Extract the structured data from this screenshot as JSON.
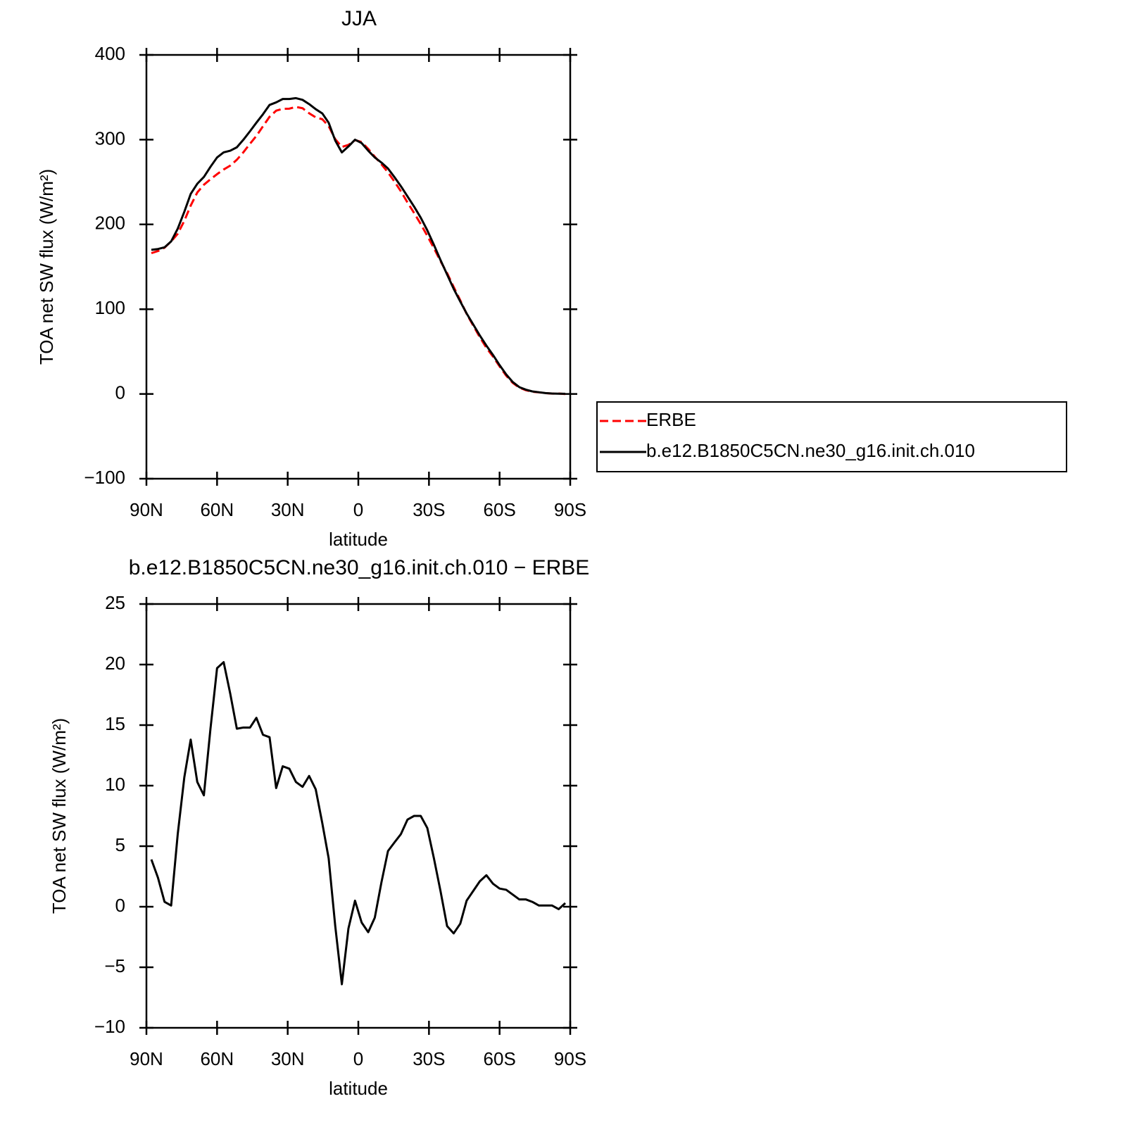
{
  "chart_data": [
    {
      "type": "line",
      "title": "JJA",
      "xlabel": "latitude",
      "ylabel": "TOA net SW flux (W/m²)",
      "x": [
        87.9,
        85.1,
        82.3,
        79.5,
        76.7,
        73.9,
        71.2,
        68.4,
        65.6,
        62.8,
        60.0,
        57.2,
        54.4,
        51.6,
        48.8,
        46.0,
        43.3,
        40.5,
        37.7,
        34.9,
        32.1,
        29.3,
        26.5,
        23.7,
        20.9,
        18.1,
        15.3,
        12.6,
        9.8,
        7.0,
        4.2,
        1.4,
        -1.4,
        -4.2,
        -7.0,
        -9.8,
        -12.6,
        -15.3,
        -18.1,
        -20.9,
        -23.7,
        -26.5,
        -29.3,
        -32.1,
        -34.9,
        -37.7,
        -40.5,
        -43.3,
        -46.0,
        -48.8,
        -51.6,
        -54.4,
        -57.2,
        -60.0,
        -62.8,
        -65.6,
        -68.4,
        -71.2,
        -73.9,
        -76.7,
        -79.5,
        -82.3,
        -85.1,
        -87.9
      ],
      "series": [
        {
          "name": "ERBE",
          "color": "#ff0000",
          "dash": true,
          "values": [
            166.1,
            168.6,
            172.6,
            179.9,
            189,
            204.3,
            222.2,
            237.7,
            246.8,
            253.3,
            259.3,
            264.8,
            269.4,
            276.3,
            285.2,
            295.2,
            304.4,
            315.8,
            327,
            334.2,
            336.4,
            336.6,
            338.7,
            337.1,
            331.2,
            326.3,
            324.1,
            316,
            300.6,
            291.4,
            293.8,
            299.5,
            297.3,
            289.1,
            279.9,
            271,
            261.4,
            250.7,
            239,
            225.8,
            213.5,
            200.5,
            186.5,
            172,
            156.7,
            142.6,
            126.2,
            110.4,
            94.5,
            80.7,
            66.9,
            54.4,
            44.1,
            32.5,
            21.6,
            13,
            7.4,
            4.4,
            2.6,
            1.9,
            0.9,
            0.4,
            0.5,
            -0.1
          ]
        },
        {
          "name": "b.e12.B1850C5CN.ne30_g16.init.ch.010",
          "color": "#000000",
          "dash": false,
          "values": [
            170,
            171,
            173,
            180,
            195,
            215,
            236,
            248,
            256,
            268,
            279,
            285,
            287,
            291,
            300,
            310,
            320,
            330,
            341,
            344,
            348,
            348,
            349,
            347,
            342,
            336,
            331,
            320,
            299,
            285,
            292,
            300,
            296,
            287,
            279,
            273,
            266,
            256,
            245,
            233,
            221,
            208,
            193,
            176,
            158,
            141,
            124,
            109,
            95,
            82,
            69,
            57,
            46,
            34,
            23,
            14,
            8,
            5,
            3,
            2,
            1,
            0.5,
            0.3,
            0.2
          ]
        }
      ],
      "xlim": [
        90,
        -90
      ],
      "xticks": [
        {
          "value": 90,
          "label": "90N"
        },
        {
          "value": 60,
          "label": "60N"
        },
        {
          "value": 30,
          "label": "30N"
        },
        0,
        {
          "value": -30,
          "label": "30S"
        },
        {
          "value": -60,
          "label": "60S"
        },
        {
          "value": -90,
          "label": "90S"
        }
      ],
      "ylim": [
        -100,
        400
      ],
      "yticks": [
        {
          "value": -100,
          "label": "−100"
        },
        0,
        100,
        200,
        300,
        400
      ],
      "legend": "outside-right"
    },
    {
      "type": "line",
      "title": "b.e12.B1850C5CN.ne30_g16.init.ch.010 − ERBE",
      "xlabel": "latitude",
      "ylabel": "TOA net SW flux (W/m²)",
      "x": [
        87.9,
        85.1,
        82.3,
        79.5,
        76.7,
        73.9,
        71.2,
        68.4,
        65.6,
        62.8,
        60.0,
        57.2,
        54.4,
        51.6,
        48.8,
        46.0,
        43.3,
        40.5,
        37.7,
        34.9,
        32.1,
        29.3,
        26.5,
        23.7,
        20.9,
        18.1,
        15.3,
        12.6,
        9.8,
        7.0,
        4.2,
        1.4,
        -1.4,
        -4.2,
        -7.0,
        -9.8,
        -12.6,
        -15.3,
        -18.1,
        -20.9,
        -23.7,
        -26.5,
        -29.3,
        -32.1,
        -34.9,
        -37.7,
        -40.5,
        -43.3,
        -46.0,
        -48.8,
        -51.6,
        -54.4,
        -57.2,
        -60.0,
        -62.8,
        -65.6,
        -68.4,
        -71.2,
        -73.9,
        -76.7,
        -79.5,
        -82.3,
        -85.1,
        -87.9
      ],
      "values": [
        3.9,
        2.4,
        0.4,
        0.1,
        6,
        10.7,
        13.8,
        10.3,
        9.2,
        14.7,
        19.7,
        20.2,
        17.6,
        14.7,
        14.8,
        14.8,
        15.6,
        14.2,
        14,
        9.8,
        11.6,
        11.4,
        10.3,
        9.9,
        10.8,
        9.7,
        6.9,
        4,
        -1.6,
        -6.4,
        -1.8,
        0.5,
        -1.3,
        -2.1,
        -0.9,
        2,
        4.6,
        5.3,
        6,
        7.2,
        7.5,
        7.5,
        6.5,
        4,
        1.3,
        -1.6,
        -2.2,
        -1.4,
        0.5,
        1.3,
        2.1,
        2.6,
        1.9,
        1.5,
        1.4,
        1,
        0.6,
        0.6,
        0.4,
        0.1,
        0.1,
        0.1,
        -0.2,
        0.3
      ],
      "color": "#000000",
      "xlim": [
        90,
        -90
      ],
      "xticks": [
        {
          "value": 90,
          "label": "90N"
        },
        {
          "value": 60,
          "label": "60N"
        },
        {
          "value": 30,
          "label": "30N"
        },
        0,
        {
          "value": -30,
          "label": "30S"
        },
        {
          "value": -60,
          "label": "60S"
        },
        {
          "value": -90,
          "label": "90S"
        }
      ],
      "ylim": [
        -10,
        25
      ],
      "yticks": [
        {
          "value": -10,
          "label": "−10"
        },
        {
          "value": -5,
          "label": "−5"
        },
        0,
        5,
        10,
        15,
        20,
        25
      ]
    }
  ]
}
